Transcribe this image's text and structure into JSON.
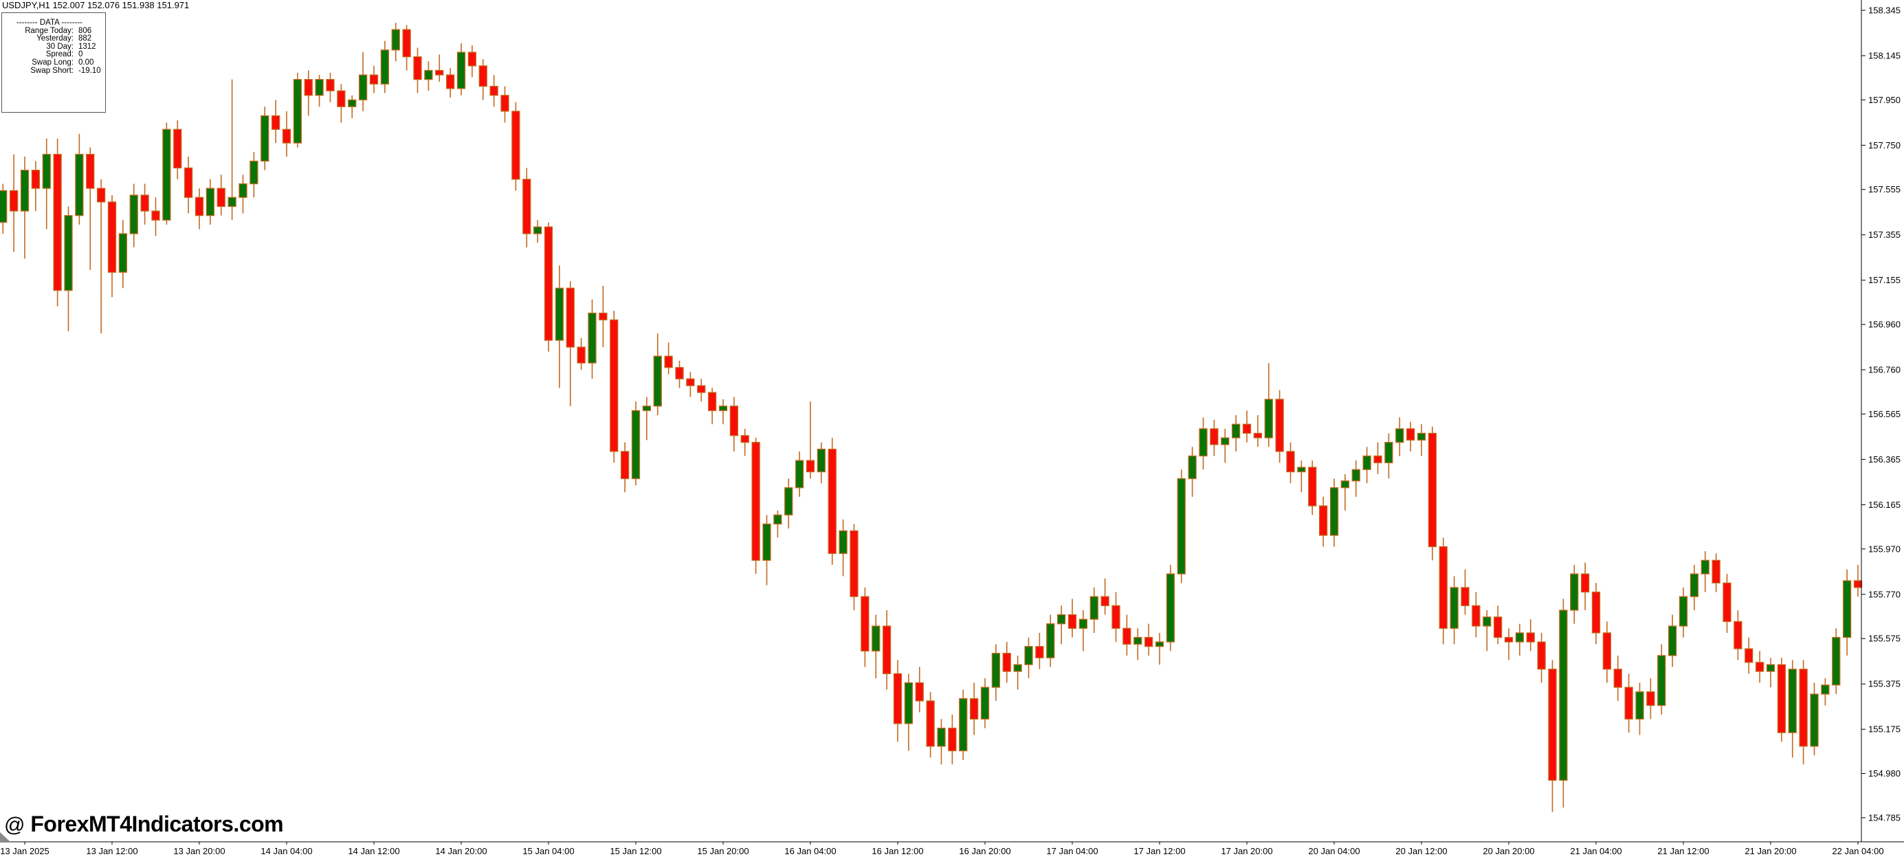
{
  "window": {
    "title": "USDJPY,H1 152.007 152.076 151.938 151.971"
  },
  "data_panel": {
    "header": "--------  DATA  --------",
    "rows": [
      {
        "label": "Range Today:",
        "value": "806"
      },
      {
        "label": "Yesterday:",
        "value": "882"
      },
      {
        "label": "30 Day:",
        "value": "1312"
      },
      {
        "label": "Spread:",
        "value": "0"
      },
      {
        "label": "Swap Long:",
        "value": "0.00"
      },
      {
        "label": "Swap Short:",
        "value": "-19.10"
      }
    ]
  },
  "watermark": {
    "at": "@",
    "text": "ForexMT4Indicators.com"
  },
  "chart_data": {
    "type": "candlestick",
    "title": "USDJPY H1 candlestick chart",
    "symbol": "USDJPY",
    "timeframe": "H1",
    "start_time": "13 Jan 2025 02:00",
    "grid": false,
    "legend_position": "none",
    "ylim": [
      154.7,
      158.39
    ],
    "y_axis_side": "right",
    "y_tick_labels": [
      "158.345",
      "158.145",
      "157.950",
      "157.750",
      "157.555",
      "157.355",
      "157.155",
      "156.960",
      "156.760",
      "156.565",
      "156.365",
      "156.165",
      "155.970",
      "155.770",
      "155.575",
      "155.375",
      "155.175",
      "154.980",
      "154.785"
    ],
    "x_tick_labels": [
      "13 Jan 2025",
      "13 Jan 12:00",
      "13 Jan 20:00",
      "14 Jan 04:00",
      "14 Jan 12:00",
      "14 Jan 20:00",
      "15 Jan 04:00",
      "15 Jan 12:00",
      "15 Jan 20:00",
      "16 Jan 04:00",
      "16 Jan 12:00",
      "16 Jan 20:00",
      "17 Jan 04:00",
      "17 Jan 12:00",
      "17 Jan 20:00",
      "20 Jan 04:00",
      "20 Jan 12:00",
      "20 Jan 20:00",
      "21 Jan 04:00",
      "21 Jan 12:00",
      "21 Jan 20:00",
      "22 Jan 04:00"
    ],
    "colors": {
      "bull_body": "#077507",
      "bear_body": "#f90d05",
      "outline_wick": "#c4691f",
      "axis": "#000000",
      "background": "#ffffff"
    },
    "candles_ohlc": [
      [
        157.41,
        157.58,
        157.36,
        157.55
      ],
      [
        157.55,
        157.71,
        157.28,
        157.46
      ],
      [
        157.46,
        157.7,
        157.25,
        157.64
      ],
      [
        157.64,
        157.68,
        157.46,
        157.56
      ],
      [
        157.56,
        157.78,
        157.38,
        157.71
      ],
      [
        157.71,
        157.78,
        157.04,
        157.11
      ],
      [
        157.11,
        157.48,
        156.93,
        157.44
      ],
      [
        157.44,
        157.8,
        157.4,
        157.71
      ],
      [
        157.71,
        157.74,
        157.2,
        157.56
      ],
      [
        157.56,
        157.6,
        156.92,
        157.5
      ],
      [
        157.5,
        157.53,
        157.08,
        157.19
      ],
      [
        157.19,
        157.42,
        157.12,
        157.36
      ],
      [
        157.36,
        157.58,
        157.3,
        157.53
      ],
      [
        157.53,
        157.58,
        157.4,
        157.46
      ],
      [
        157.46,
        157.52,
        157.35,
        157.42
      ],
      [
        157.42,
        157.85,
        157.4,
        157.82
      ],
      [
        157.82,
        157.86,
        157.6,
        157.65
      ],
      [
        157.65,
        157.7,
        157.45,
        157.52
      ],
      [
        157.52,
        157.56,
        157.38,
        157.44
      ],
      [
        157.44,
        157.6,
        157.4,
        157.56
      ],
      [
        157.56,
        157.62,
        157.44,
        157.48
      ],
      [
        157.48,
        158.04,
        157.42,
        157.52
      ],
      [
        157.52,
        157.62,
        157.45,
        157.58
      ],
      [
        157.58,
        157.72,
        157.52,
        157.68
      ],
      [
        157.68,
        157.92,
        157.64,
        157.88
      ],
      [
        157.88,
        157.95,
        157.76,
        157.82
      ],
      [
        157.82,
        157.9,
        157.7,
        157.76
      ],
      [
        157.76,
        158.07,
        157.74,
        158.04
      ],
      [
        158.04,
        158.08,
        157.88,
        157.97
      ],
      [
        157.97,
        158.06,
        157.92,
        158.04
      ],
      [
        158.04,
        158.07,
        157.94,
        157.99
      ],
      [
        157.99,
        158.02,
        157.85,
        157.92
      ],
      [
        157.92,
        157.97,
        157.87,
        157.95
      ],
      [
        157.95,
        158.16,
        157.9,
        158.06
      ],
      [
        158.06,
        158.1,
        157.98,
        158.02
      ],
      [
        158.02,
        158.21,
        157.98,
        158.17
      ],
      [
        158.17,
        158.29,
        158.12,
        158.26
      ],
      [
        158.26,
        158.28,
        158.08,
        158.14
      ],
      [
        158.14,
        158.18,
        157.98,
        158.04
      ],
      [
        158.04,
        158.12,
        157.99,
        158.08
      ],
      [
        158.08,
        158.15,
        158.03,
        158.06
      ],
      [
        158.06,
        158.09,
        157.96,
        158.0
      ],
      [
        158.0,
        158.2,
        157.97,
        158.16
      ],
      [
        158.16,
        158.19,
        158.05,
        158.1
      ],
      [
        158.1,
        158.13,
        157.95,
        158.01
      ],
      [
        158.01,
        158.06,
        157.92,
        157.97
      ],
      [
        157.97,
        158.01,
        157.85,
        157.9
      ],
      [
        157.9,
        157.94,
        157.55,
        157.6
      ],
      [
        157.6,
        157.65,
        157.3,
        157.36
      ],
      [
        157.36,
        157.42,
        157.32,
        157.39
      ],
      [
        157.39,
        157.41,
        156.84,
        156.89
      ],
      [
        156.89,
        157.22,
        156.68,
        157.12
      ],
      [
        157.12,
        157.15,
        156.6,
        156.86
      ],
      [
        156.86,
        156.9,
        156.76,
        156.79
      ],
      [
        156.79,
        157.07,
        156.72,
        157.01
      ],
      [
        157.01,
        157.13,
        156.86,
        156.98
      ],
      [
        156.98,
        157.02,
        156.35,
        156.4
      ],
      [
        156.4,
        156.44,
        156.22,
        156.28
      ],
      [
        156.28,
        156.62,
        156.25,
        156.58
      ],
      [
        156.58,
        156.64,
        156.45,
        156.6
      ],
      [
        156.6,
        156.92,
        156.56,
        156.82
      ],
      [
        156.82,
        156.88,
        156.74,
        156.77
      ],
      [
        156.77,
        156.8,
        156.68,
        156.72
      ],
      [
        156.72,
        156.75,
        156.64,
        156.69
      ],
      [
        156.69,
        156.72,
        156.62,
        156.66
      ],
      [
        156.66,
        156.68,
        156.52,
        156.58
      ],
      [
        156.58,
        156.63,
        156.52,
        156.6
      ],
      [
        156.6,
        156.64,
        156.4,
        156.47
      ],
      [
        156.47,
        156.5,
        156.38,
        156.44
      ],
      [
        156.44,
        156.46,
        155.86,
        155.92
      ],
      [
        155.92,
        156.12,
        155.81,
        156.08
      ],
      [
        156.08,
        156.14,
        156.02,
        156.12
      ],
      [
        156.12,
        156.28,
        156.06,
        156.24
      ],
      [
        156.24,
        156.4,
        156.2,
        156.36
      ],
      [
        156.36,
        156.62,
        156.28,
        156.31
      ],
      [
        156.31,
        156.44,
        156.26,
        156.41
      ],
      [
        156.41,
        156.46,
        155.9,
        155.95
      ],
      [
        155.95,
        156.1,
        155.85,
        156.05
      ],
      [
        156.05,
        156.08,
        155.7,
        155.76
      ],
      [
        155.76,
        155.8,
        155.45,
        155.52
      ],
      [
        155.52,
        155.68,
        155.4,
        155.63
      ],
      [
        155.63,
        155.7,
        155.35,
        155.42
      ],
      [
        155.42,
        155.48,
        155.12,
        155.2
      ],
      [
        155.2,
        155.42,
        155.08,
        155.38
      ],
      [
        155.38,
        155.45,
        155.25,
        155.3
      ],
      [
        155.3,
        155.34,
        155.05,
        155.1
      ],
      [
        155.1,
        155.22,
        155.02,
        155.18
      ],
      [
        155.18,
        155.24,
        155.02,
        155.08
      ],
      [
        155.08,
        155.35,
        155.04,
        155.31
      ],
      [
        155.31,
        155.38,
        155.15,
        155.22
      ],
      [
        155.22,
        155.4,
        155.18,
        155.36
      ],
      [
        155.36,
        155.55,
        155.3,
        155.51
      ],
      [
        155.51,
        155.56,
        155.38,
        155.43
      ],
      [
        155.43,
        155.5,
        155.35,
        155.46
      ],
      [
        155.46,
        155.58,
        155.4,
        155.54
      ],
      [
        155.54,
        155.6,
        155.44,
        155.49
      ],
      [
        155.49,
        155.68,
        155.45,
        155.64
      ],
      [
        155.64,
        155.72,
        155.55,
        155.68
      ],
      [
        155.68,
        155.75,
        155.58,
        155.62
      ],
      [
        155.62,
        155.7,
        155.52,
        155.66
      ],
      [
        155.66,
        155.8,
        155.6,
        155.76
      ],
      [
        155.76,
        155.84,
        155.68,
        155.72
      ],
      [
        155.72,
        155.78,
        155.56,
        155.62
      ],
      [
        155.62,
        155.68,
        155.5,
        155.55
      ],
      [
        155.55,
        155.62,
        155.48,
        155.58
      ],
      [
        155.58,
        155.64,
        155.5,
        155.54
      ],
      [
        155.54,
        155.6,
        155.46,
        155.56
      ],
      [
        155.56,
        155.9,
        155.52,
        155.86
      ],
      [
        155.86,
        156.32,
        155.82,
        156.28
      ],
      [
        156.28,
        156.42,
        156.2,
        156.38
      ],
      [
        156.38,
        156.55,
        156.32,
        156.5
      ],
      [
        156.5,
        156.54,
        156.38,
        156.43
      ],
      [
        156.43,
        156.5,
        156.35,
        156.46
      ],
      [
        156.46,
        156.56,
        156.4,
        156.52
      ],
      [
        156.52,
        156.58,
        156.44,
        156.48
      ],
      [
        156.48,
        156.56,
        156.42,
        156.46
      ],
      [
        156.46,
        156.79,
        156.42,
        156.63
      ],
      [
        156.63,
        156.67,
        156.35,
        156.4
      ],
      [
        156.4,
        156.44,
        156.26,
        156.31
      ],
      [
        156.31,
        156.36,
        156.22,
        156.33
      ],
      [
        156.33,
        156.36,
        156.12,
        156.16
      ],
      [
        156.16,
        156.2,
        155.98,
        156.03
      ],
      [
        156.03,
        156.28,
        155.98,
        156.24
      ],
      [
        156.24,
        156.3,
        156.14,
        156.27
      ],
      [
        156.27,
        156.36,
        156.2,
        156.32
      ],
      [
        156.32,
        156.42,
        156.26,
        156.38
      ],
      [
        156.38,
        156.44,
        156.3,
        156.35
      ],
      [
        156.35,
        156.48,
        156.28,
        156.44
      ],
      [
        156.44,
        156.55,
        156.38,
        156.5
      ],
      [
        156.5,
        156.53,
        156.4,
        156.45
      ],
      [
        156.45,
        156.52,
        156.38,
        156.48
      ],
      [
        156.48,
        156.51,
        155.92,
        155.98
      ],
      [
        155.98,
        156.02,
        155.55,
        155.62
      ],
      [
        155.62,
        155.85,
        155.55,
        155.8
      ],
      [
        155.8,
        155.88,
        155.68,
        155.72
      ],
      [
        155.72,
        155.78,
        155.58,
        155.63
      ],
      [
        155.63,
        155.7,
        155.52,
        155.67
      ],
      [
        155.67,
        155.72,
        155.55,
        155.58
      ],
      [
        155.58,
        155.62,
        155.48,
        155.56
      ],
      [
        155.56,
        155.64,
        155.5,
        155.6
      ],
      [
        155.6,
        155.66,
        155.52,
        155.56
      ],
      [
        155.56,
        155.6,
        155.38,
        155.44
      ],
      [
        155.44,
        155.48,
        154.81,
        154.95
      ],
      [
        154.95,
        155.75,
        154.83,
        155.7
      ],
      [
        155.7,
        155.9,
        155.64,
        155.86
      ],
      [
        155.86,
        155.91,
        155.7,
        155.78
      ],
      [
        155.78,
        155.82,
        155.55,
        155.6
      ],
      [
        155.6,
        155.65,
        155.38,
        155.44
      ],
      [
        155.44,
        155.5,
        155.3,
        155.36
      ],
      [
        155.36,
        155.42,
        155.16,
        155.22
      ],
      [
        155.22,
        155.38,
        155.15,
        155.34
      ],
      [
        155.34,
        155.4,
        155.22,
        155.28
      ],
      [
        155.28,
        155.55,
        155.24,
        155.5
      ],
      [
        155.5,
        155.68,
        155.45,
        155.63
      ],
      [
        155.63,
        155.8,
        155.58,
        155.76
      ],
      [
        155.76,
        155.9,
        155.7,
        155.86
      ],
      [
        155.86,
        155.96,
        155.78,
        155.92
      ],
      [
        155.92,
        155.95,
        155.78,
        155.82
      ],
      [
        155.82,
        155.86,
        155.6,
        155.65
      ],
      [
        155.65,
        155.7,
        155.48,
        155.53
      ],
      [
        155.53,
        155.58,
        155.42,
        155.47
      ],
      [
        155.47,
        155.52,
        155.38,
        155.43
      ],
      [
        155.43,
        155.49,
        155.36,
        155.46
      ],
      [
        155.46,
        155.49,
        155.12,
        155.16
      ],
      [
        155.16,
        155.48,
        155.05,
        155.44
      ],
      [
        155.44,
        155.48,
        155.02,
        155.1
      ],
      [
        155.1,
        155.38,
        155.06,
        155.33
      ],
      [
        155.33,
        155.4,
        155.28,
        155.37
      ],
      [
        155.37,
        155.62,
        155.33,
        155.58
      ],
      [
        155.58,
        155.88,
        155.5,
        155.83
      ],
      [
        155.83,
        155.9,
        155.76,
        155.8
      ]
    ]
  }
}
